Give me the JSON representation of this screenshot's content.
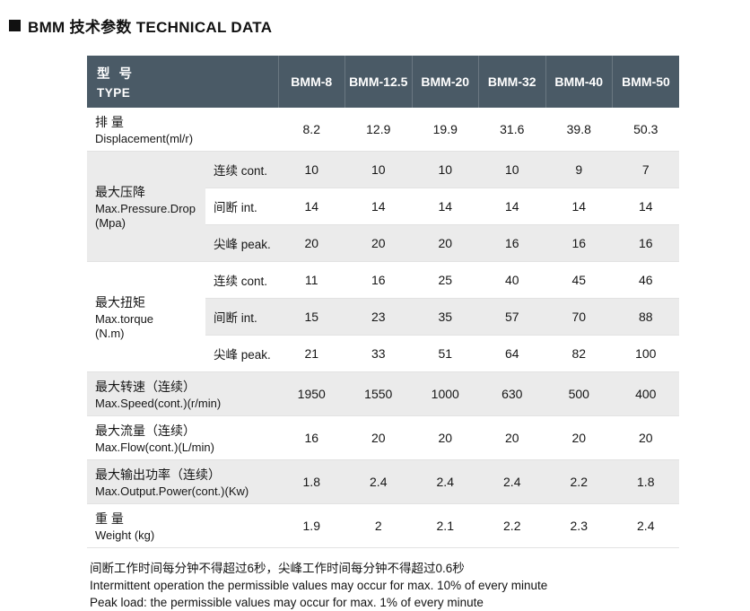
{
  "title": {
    "text": "BMM 技术参数 TECHNICAL DATA"
  },
  "icons": {
    "section_bullet": "black-square"
  },
  "colors": {
    "header_bg": "#4a5a66",
    "header_text": "#ffffff",
    "row_shade": "#ebebeb",
    "row_white": "#ffffff"
  },
  "table": {
    "type_header": {
      "cn": "型 号",
      "en": "TYPE"
    },
    "columns": [
      "BMM-8",
      "BMM-12.5",
      "BMM-20",
      "BMM-32",
      "BMM-40",
      "BMM-50"
    ],
    "rows": {
      "displacement": {
        "cn": "排 量",
        "en": "Displacement(ml/r)",
        "values": [
          "8.2",
          "12.9",
          "19.9",
          "31.6",
          "39.8",
          "50.3"
        ]
      },
      "pressure": {
        "cn": "最大压降",
        "en": "Max.Pressure.Drop",
        "unit": "(Mpa)",
        "cont": {
          "label": "连续 cont.",
          "values": [
            "10",
            "10",
            "10",
            "10",
            "9",
            "7"
          ]
        },
        "int": {
          "label": "间断 int.",
          "values": [
            "14",
            "14",
            "14",
            "14",
            "14",
            "14"
          ]
        },
        "peak": {
          "label": "尖峰 peak.",
          "values": [
            "20",
            "20",
            "20",
            "16",
            "16",
            "16"
          ]
        }
      },
      "torque": {
        "cn": "最大扭矩",
        "en": "Max.torque",
        "unit": "(N.m)",
        "cont": {
          "label": "连续 cont.",
          "values": [
            "11",
            "16",
            "25",
            "40",
            "45",
            "46"
          ]
        },
        "int": {
          "label": "间断 int.",
          "values": [
            "15",
            "23",
            "35",
            "57",
            "70",
            "88"
          ]
        },
        "peak": {
          "label": "尖峰 peak.",
          "values": [
            "21",
            "33",
            "51",
            "64",
            "82",
            "100"
          ]
        }
      },
      "speed": {
        "cn": "最大转速（连续）",
        "en": "Max.Speed(cont.)(r/min)",
        "values": [
          "1950",
          "1550",
          "1000",
          "630",
          "500",
          "400"
        ]
      },
      "flow": {
        "cn": "最大流量（连续）",
        "en": "Max.Flow(cont.)(L/min)",
        "values": [
          "16",
          "20",
          "20",
          "20",
          "20",
          "20"
        ]
      },
      "power": {
        "cn": "最大输出功率（连续）",
        "en": "Max.Output.Power(cont.)(Kw)",
        "values": [
          "1.8",
          "2.4",
          "2.4",
          "2.4",
          "2.2",
          "1.8"
        ]
      },
      "weight": {
        "cn": "重 量",
        "en": "Weight (kg)",
        "values": [
          "1.9",
          "2",
          "2.1",
          "2.2",
          "2.3",
          "2.4"
        ]
      }
    }
  },
  "notes": {
    "line1": "间断工作时间每分钟不得超过6秒，尖峰工作时间每分钟不得超过0.6秒",
    "line2": "Intermittent operation the permissible values may occur for max. 10% of every minute",
    "line3": "Peak load: the permissible values may occur for max. 1% of every minute"
  }
}
